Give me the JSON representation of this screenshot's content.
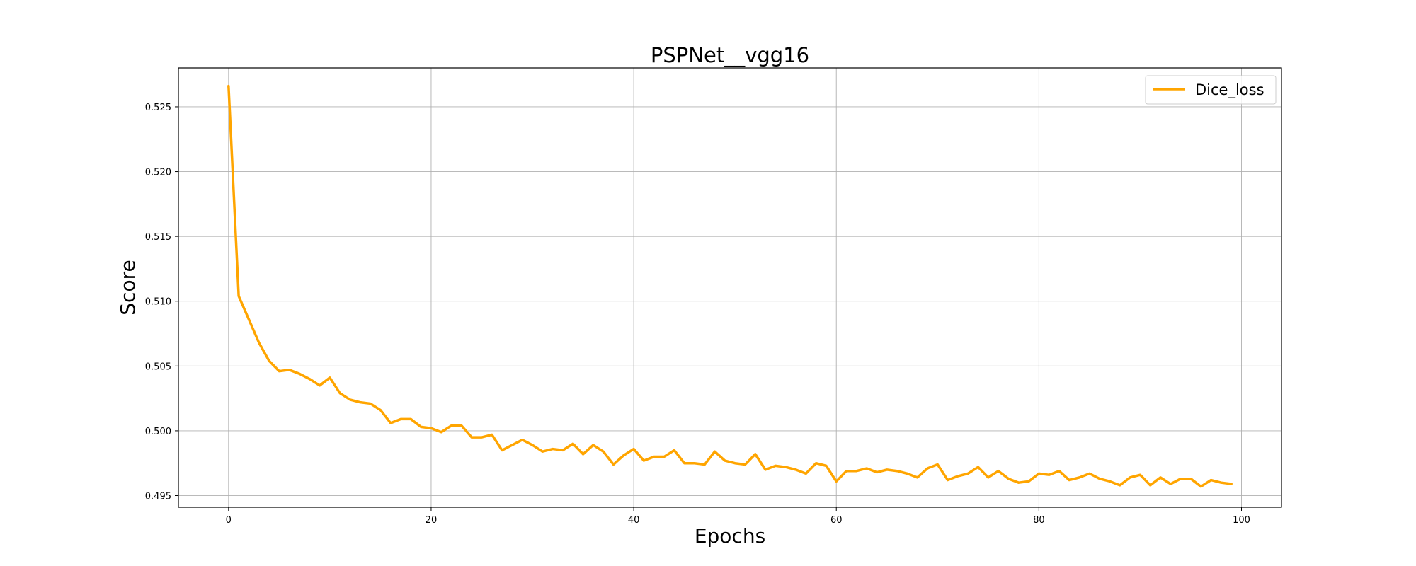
{
  "chart_data": {
    "type": "line",
    "title": "PSPNet__vgg16",
    "xlabel": "Epochs",
    "ylabel": "Score",
    "xlim": [
      -4.95,
      103.95
    ],
    "ylim": [
      0.4941,
      0.528
    ],
    "xticks": [
      0,
      20,
      40,
      60,
      80,
      100
    ],
    "yticks": [
      0.495,
      0.5,
      0.505,
      0.51,
      0.515,
      0.52,
      0.525
    ],
    "ytick_labels": [
      "0.495",
      "0.500",
      "0.505",
      "0.510",
      "0.515",
      "0.520",
      "0.525"
    ],
    "grid": true,
    "legend_position": "top-right",
    "series": [
      {
        "name": "Dice_loss",
        "color": "#FFA500",
        "x": [
          0,
          1,
          2,
          3,
          4,
          5,
          6,
          7,
          8,
          9,
          10,
          11,
          12,
          13,
          14,
          15,
          16,
          17,
          18,
          19,
          20,
          21,
          22,
          23,
          24,
          25,
          26,
          27,
          28,
          29,
          30,
          31,
          32,
          33,
          34,
          35,
          36,
          37,
          38,
          39,
          40,
          41,
          42,
          43,
          44,
          45,
          46,
          47,
          48,
          49,
          50,
          51,
          52,
          53,
          54,
          55,
          56,
          57,
          58,
          59,
          60,
          61,
          62,
          63,
          64,
          65,
          66,
          67,
          68,
          69,
          70,
          71,
          72,
          73,
          74,
          75,
          76,
          77,
          78,
          79,
          80,
          81,
          82,
          83,
          84,
          85,
          86,
          87,
          88,
          89,
          90,
          91,
          92,
          93,
          94,
          95,
          96,
          97,
          98,
          99
        ],
        "values": [
          0.5266,
          0.5104,
          0.5086,
          0.5068,
          0.5054,
          0.5046,
          0.5047,
          0.5044,
          0.504,
          0.5035,
          0.5041,
          0.5029,
          0.5024,
          0.5022,
          0.5021,
          0.5016,
          0.5006,
          0.5009,
          0.5009,
          0.5003,
          0.5002,
          0.4999,
          0.5004,
          0.5004,
          0.4995,
          0.4995,
          0.4997,
          0.4985,
          0.4989,
          0.4993,
          0.4989,
          0.4984,
          0.4986,
          0.4985,
          0.499,
          0.4982,
          0.4989,
          0.4984,
          0.4974,
          0.4981,
          0.4986,
          0.4977,
          0.498,
          0.498,
          0.4985,
          0.4975,
          0.4975,
          0.4974,
          0.4984,
          0.4977,
          0.4975,
          0.4974,
          0.4982,
          0.497,
          0.4973,
          0.4972,
          0.497,
          0.4967,
          0.4975,
          0.4973,
          0.4961,
          0.4969,
          0.4969,
          0.4971,
          0.4968,
          0.497,
          0.4969,
          0.4967,
          0.4964,
          0.4971,
          0.4974,
          0.4962,
          0.4965,
          0.4967,
          0.4972,
          0.4964,
          0.4969,
          0.4963,
          0.496,
          0.4961,
          0.4967,
          0.4966,
          0.4969,
          0.4962,
          0.4964,
          0.4967,
          0.4963,
          0.4961,
          0.4958,
          0.4964,
          0.4966,
          0.4958,
          0.4964,
          0.4959,
          0.4963,
          0.4963,
          0.4957,
          0.4962,
          0.496,
          0.4959
        ]
      }
    ]
  }
}
